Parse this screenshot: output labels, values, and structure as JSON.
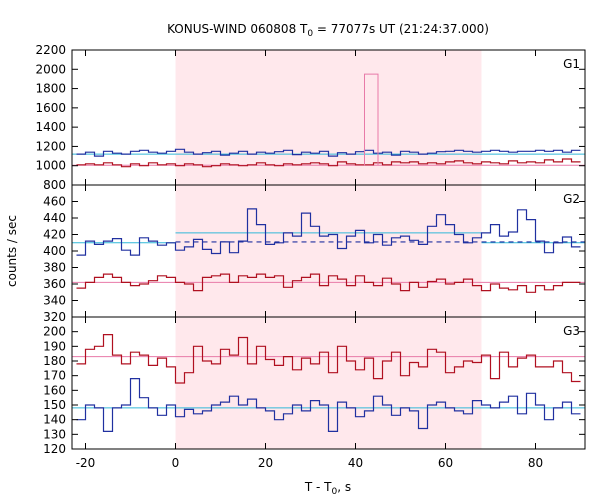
{
  "chart_data": {
    "type": "line",
    "title": {
      "main": "KONUS-WIND 060808 T",
      "subscript": "0",
      "rest": " = 77077s UT (21:24:37.000)"
    },
    "xlabel": {
      "main": "T - T",
      "subscript": "0",
      "rest": ", s"
    },
    "ylabel": "counts / sec",
    "xlim": [
      -23,
      91
    ],
    "x_ticks": [
      -20,
      0,
      20,
      40,
      60,
      80
    ],
    "grid": false,
    "shaded_interval": {
      "x": [
        0,
        68
      ],
      "color": "#ffe8ec"
    },
    "colors": {
      "high": "#b01020",
      "low": "#2030a0",
      "high_bg": "#e87aa8",
      "low_bg": "#30b8d8",
      "blip": "#e87aa8"
    },
    "panels": [
      {
        "label": "G1",
        "ylim": [
          800,
          2200
        ],
        "y_ticks": [
          800,
          1000,
          1200,
          1400,
          1600,
          1800,
          2000,
          2200
        ],
        "step": 2,
        "series": [
          {
            "color": "blue",
            "x_start": -22,
            "values": [
              1120,
              1140,
              1100,
              1150,
              1130,
              1120,
              1150,
              1160,
              1140,
              1130,
              1150,
              1170,
              1140,
              1120,
              1135,
              1150,
              1110,
              1130,
              1150,
              1120,
              1140,
              1130,
              1145,
              1160,
              1115,
              1140,
              1130,
              1150,
              1100,
              1135,
              1120,
              1145,
              1160,
              1130,
              1140,
              1110,
              1150,
              1140,
              1120,
              1130,
              1145,
              1150,
              1160,
              1150,
              1140,
              1150,
              1160,
              1150,
              1140,
              1150,
              1150,
              1160,
              1150,
              1160,
              1140,
              1160
            ]
          },
          {
            "color": "red",
            "x_start": -22,
            "values": [
              1010,
              1020,
              1010,
              1030,
              1010,
              990,
              1020,
              1000,
              1030,
              1010,
              1020,
              1000,
              1020,
              1010,
              990,
              1000,
              1020,
              1010,
              1000,
              1010,
              1030,
              1010,
              1000,
              1020,
              1010,
              1020,
              1030,
              1020,
              1000,
              1040,
              1020,
              1010,
              1010,
              1030,
              1010,
              1040,
              1030,
              1040,
              1020,
              1030,
              1020,
              1040,
              1050,
              1030,
              1020,
              1040,
              1030,
              1020,
              1050,
              1030,
              1040,
              1030,
              1060,
              1040,
              1070,
              1040
            ]
          }
        ],
        "backgrounds": [
          {
            "color": "low_bg",
            "y": 1120
          },
          {
            "color": "high_bg",
            "y": 1005
          }
        ],
        "blip": {
          "x": [
            42,
            45
          ],
          "y": 1950
        }
      },
      {
        "label": "G2",
        "ylim": [
          320,
          480
        ],
        "y_ticks": [
          320,
          340,
          360,
          380,
          400,
          420,
          440,
          460
        ],
        "step": 2,
        "series": [
          {
            "color": "blue",
            "x_start": -22,
            "values": [
              395,
              412,
              408,
              412,
              415,
              401,
              395,
              416,
              412,
              407,
              410,
              401,
              405,
              414,
              402,
              397,
              411,
              398,
              412,
              451,
              432,
              408,
              410,
              422,
              418,
              446,
              430,
              418,
              420,
              403,
              418,
              425,
              410,
              420,
              407,
              416,
              418,
              413,
              408,
              430,
              444,
              432,
              420,
              410,
              416,
              422,
              432,
              418,
              423,
              450,
              438,
              412,
              398,
              410,
              417,
              405
            ]
          },
          {
            "color": "red",
            "x_start": -22,
            "values": [
              355,
              362,
              368,
              372,
              368,
              362,
              358,
              360,
              364,
              370,
              368,
              362,
              360,
              352,
              368,
              370,
              372,
              362,
              370,
              368,
              372,
              368,
              370,
              356,
              364,
              368,
              372,
              358,
              370,
              366,
              358,
              370,
              362,
              358,
              367,
              360,
              352,
              362,
              356,
              363,
              366,
              360,
              362,
              366,
              358,
              352,
              360,
              355,
              353,
              358,
              350,
              358,
              353,
              358,
              362,
              362
            ]
          }
        ],
        "backgrounds": [
          {
            "color": "low_bg",
            "y": 410,
            "x": [
              -23,
              0
            ]
          },
          {
            "color": "low_bg",
            "y": 422,
            "x": [
              0,
              68
            ]
          },
          {
            "color": "low_bg",
            "y": 410,
            "x": [
              68,
              91
            ]
          },
          {
            "color": "high_bg",
            "y": 362
          }
        ],
        "trend": {
          "color": "low",
          "y": 411,
          "x": [
            0,
            91
          ],
          "dashed": true
        },
        "step2_tail": {
          "x_start": 68,
          "values": [
            395,
            385,
            400,
            412,
            403,
            408,
            420,
            413,
            404,
            410,
            410,
            418
          ]
        }
      },
      {
        "label": "G3",
        "ylim": [
          120,
          210
        ],
        "y_ticks": [
          120,
          130,
          140,
          150,
          160,
          170,
          180,
          190,
          200
        ],
        "step": 2,
        "series": [
          {
            "color": "red",
            "x_start": -22,
            "values": [
              178,
              188,
              190,
              198,
              184,
              178,
              186,
              184,
              177,
              182,
              176,
              165,
              172,
              190,
              180,
              178,
              188,
              184,
              196,
              178,
              190,
              181,
              177,
              183,
              174,
              182,
              178,
              186,
              172,
              190,
              180,
              174,
              182,
              168,
              180,
              186,
              170,
              179,
              176,
              188,
              186,
              172,
              176,
              180,
              179,
              184,
              168,
              186,
              176,
              182,
              184,
              176,
              176,
              180,
              172,
              166
            ]
          },
          {
            "color": "blue",
            "x_start": -22,
            "values": [
              140,
              150,
              148,
              132,
              148,
              150,
              168,
              155,
              148,
              143,
              150,
              142,
              147,
              144,
              146,
              150,
              152,
              156,
              150,
              154,
              148,
              146,
              140,
              144,
              150,
              146,
              153,
              150,
              132,
              152,
              148,
              142,
              146,
              156,
              150,
              143,
              148,
              146,
              134,
              150,
              152,
              148,
              146,
              144,
              153,
              150,
              148,
              152,
              156,
              144,
              158,
              150,
              140,
              148,
              152,
              144
            ]
          }
        ],
        "backgrounds": [
          {
            "color": "high_bg",
            "y": 183
          },
          {
            "color": "low_bg",
            "y": 148
          }
        ]
      }
    ]
  }
}
